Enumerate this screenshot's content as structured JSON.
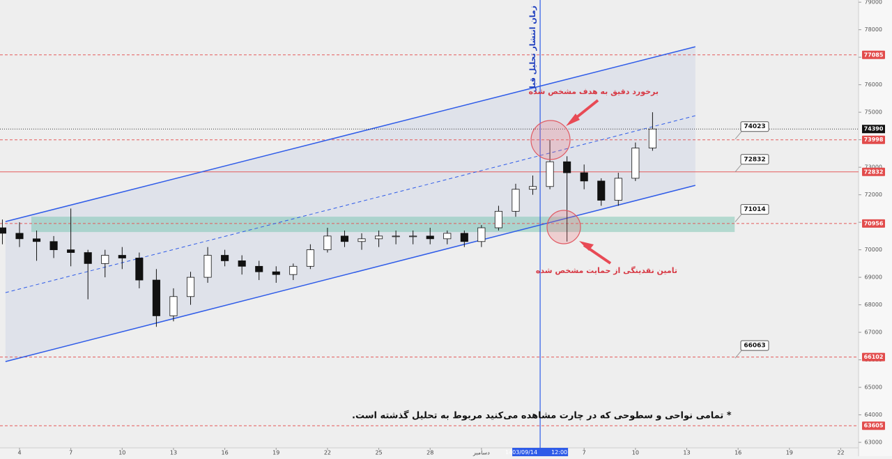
{
  "chart_data": {
    "type": "candlestick",
    "x": [
      -1,
      0,
      1,
      2,
      3,
      4,
      5,
      6,
      7,
      8,
      9,
      10,
      11,
      12,
      13,
      14,
      15,
      16,
      17,
      18,
      19,
      20,
      21,
      22,
      23,
      24,
      25,
      26,
      27,
      28,
      29,
      30,
      31,
      32,
      33,
      34,
      35,
      36,
      37
    ],
    "open": [
      70800,
      70600,
      70400,
      70300,
      70000,
      69900,
      69500,
      69800,
      69700,
      68900,
      67600,
      68300,
      69000,
      69800,
      69600,
      69400,
      69200,
      69100,
      69400,
      70000,
      70500,
      70300,
      70400,
      70500,
      70500,
      70500,
      70400,
      70600,
      70300,
      70800,
      71400,
      72200,
      72300,
      73200,
      72800,
      72500,
      71800,
      72600,
      73700
    ],
    "high": [
      71100,
      71000,
      70700,
      70500,
      71500,
      70000,
      70000,
      70100,
      69900,
      69300,
      68600,
      69200,
      70100,
      70000,
      69800,
      69600,
      69400,
      69500,
      70200,
      70800,
      70700,
      70600,
      70700,
      70700,
      70700,
      70800,
      70700,
      70700,
      70900,
      71600,
      72400,
      72700,
      74000,
      73400,
      73100,
      72600,
      72800,
      73900,
      75000
    ],
    "low": [
      70200,
      70100,
      69600,
      69700,
      69400,
      68200,
      69000,
      69300,
      68600,
      67200,
      67400,
      68000,
      68800,
      69400,
      69100,
      68900,
      68800,
      68900,
      69300,
      69900,
      70100,
      70000,
      70100,
      70200,
      70200,
      70200,
      70200,
      70100,
      70100,
      70700,
      71200,
      72000,
      72200,
      70300,
      72200,
      71600,
      71600,
      72500,
      73600
    ],
    "close": [
      70600,
      70400,
      70300,
      70000,
      69900,
      69500,
      69800,
      69700,
      68900,
      67600,
      68300,
      69000,
      69800,
      69600,
      69400,
      69200,
      69100,
      69400,
      70000,
      70500,
      70300,
      70400,
      70500,
      70500,
      70500,
      70400,
      70600,
      70300,
      70800,
      71400,
      72200,
      72300,
      73200,
      72800,
      72500,
      71800,
      72600,
      73700,
      74390
    ],
    "xlim": [
      -1.14,
      49.04
    ],
    "xticks": [
      {
        "value": 0,
        "label": "4"
      },
      {
        "value": 3,
        "label": "7"
      },
      {
        "value": 6,
        "label": "10"
      },
      {
        "value": 9,
        "label": "13"
      },
      {
        "value": 12,
        "label": "16"
      },
      {
        "value": 15,
        "label": "19"
      },
      {
        "value": 18,
        "label": "22"
      },
      {
        "value": 21,
        "label": "25"
      },
      {
        "value": 24,
        "label": "28"
      },
      {
        "value": 27,
        "label": "دسامبر"
      },
      {
        "value": 33,
        "label": "7"
      },
      {
        "value": 36,
        "label": "10"
      },
      {
        "value": 39,
        "label": "13"
      },
      {
        "value": 42,
        "label": "16"
      },
      {
        "value": 45,
        "label": "19"
      },
      {
        "value": 48,
        "label": "22"
      }
    ],
    "ylim": [
      62800,
      79080
    ],
    "yticks": [
      63000,
      64000,
      65000,
      66000,
      67000,
      68000,
      69000,
      70000,
      71000,
      72000,
      73000,
      74000,
      75000,
      76000,
      77000,
      78000,
      79000
    ],
    "levels": [
      {
        "value": 77085,
        "style": "dashed"
      },
      {
        "value": 73998,
        "style": "dashed"
      },
      {
        "value": 72832,
        "style": "solid"
      },
      {
        "value": 70956,
        "style": "dashed"
      },
      {
        "value": 66102,
        "style": "dashed"
      },
      {
        "value": 63605,
        "style": "dashed"
      }
    ],
    "current_price": 74390,
    "callouts": [
      74023,
      72832,
      71014,
      66063
    ],
    "channel": {
      "upper": [
        [
          -0.82,
          71025
        ],
        [
          39.5,
          77380
        ]
      ],
      "lower": [
        [
          -0.82,
          65937
        ],
        [
          39.5,
          72342
        ]
      ],
      "middle": [
        [
          -0.82,
          68443
        ],
        [
          39.5,
          74873
        ]
      ]
    },
    "zone": {
      "x": [
        0.69,
        41.8
      ],
      "y": [
        70646,
        71203
      ]
    },
    "event": {
      "x": 30.43,
      "date": "1403/09/14",
      "time": "12:00",
      "label": "زمان انتشار تحلیل قبل"
    },
    "annotations": [
      "برخورد دقیق به هدف مشخص شده",
      "تامین نقدینگی از حمایت مشخص شده"
    ],
    "note": "* تمامی نواحی و سطوحی که در چارت مشاهده می‌کنید مربوط به تحلیل گذشته است."
  }
}
